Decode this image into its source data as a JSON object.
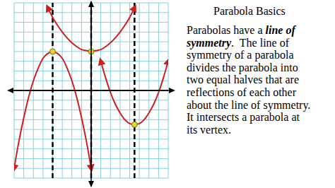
{
  "chart_data": {
    "type": "line",
    "xlim": [
      -8,
      8
    ],
    "ylim": [
      -9,
      9
    ],
    "xticks": [
      -8,
      -7,
      -6,
      -5,
      -4,
      -3,
      -2,
      -1,
      0,
      1,
      2,
      3,
      4,
      5,
      6,
      7,
      8
    ],
    "yticks": [
      -9,
      -8,
      -7,
      -6,
      -5,
      -4,
      -3,
      -2,
      -1,
      0,
      1,
      2,
      3,
      4,
      5,
      6,
      7,
      8,
      9
    ],
    "grid": true,
    "tick_labels": false,
    "series": [
      {
        "color": "#cc1f1f",
        "x": [
          -8,
          -7.5,
          -7,
          -6.5,
          -6,
          -5.5,
          -5,
          -4.5,
          -4,
          -3.5,
          -3,
          -2.5,
          -2,
          -1.5,
          -1,
          -0.5,
          0
        ],
        "values": [
          -8,
          -5.2,
          -2.8,
          -0.7,
          1,
          2.3,
          3.3,
          3.8,
          4,
          3.8,
          3.3,
          2.3,
          1,
          -0.7,
          -2.8,
          -5.2,
          -8
        ]
      },
      {
        "color": "#cc1f1f",
        "x": [
          -4.5,
          -4,
          -3.5,
          -3,
          -2.5,
          -2,
          -1.5,
          -1,
          -0.5,
          0,
          0.5,
          1,
          1.5,
          2,
          2.5,
          3,
          3.5,
          4,
          4.5
        ],
        "values": [
          8.5,
          7.5,
          6.7,
          6,
          5.4,
          4.9,
          4.5,
          4.2,
          4.1,
          4,
          4.1,
          4.2,
          4.5,
          4.9,
          5.4,
          6,
          6.7,
          7.5,
          8.5
        ]
      },
      {
        "color": "#cc1f1f",
        "x": [
          1,
          1.5,
          2,
          2.5,
          3,
          3.5,
          4,
          4.5,
          5,
          5.5,
          6,
          6.5,
          7,
          7.5,
          8
        ],
        "values": [
          3,
          1.3,
          -0.2,
          -1.4,
          -2.3,
          -3,
          -3.4,
          -3.5,
          -3.4,
          -3,
          -2.3,
          -1.4,
          -0.2,
          1.3,
          3
        ]
      }
    ],
    "vertices": {
      "x": [
        -4,
        0,
        4.5
      ],
      "y": [
        4,
        4,
        -3.5
      ],
      "color": "#e3d23a"
    },
    "symmetry_lines": {
      "x": [
        -4,
        0,
        4.5
      ],
      "line_style": "dashed"
    }
  },
  "text": {
    "title": "Parabola Basics",
    "paragraph_lines": [
      [
        {
          "text": "Parabolas have a "
        },
        {
          "text": "line of",
          "emphasis": true
        }
      ],
      [
        {
          "text": "symmetry",
          "emphasis": true
        },
        {
          "text": ".  The line of"
        }
      ],
      [
        {
          "text": "symmetry of a parabola"
        }
      ],
      [
        {
          "text": "divides the parabola into"
        }
      ],
      [
        {
          "text": "two equal halves that are"
        }
      ],
      [
        {
          "text": "reflections of each other"
        }
      ],
      [
        {
          "text": "about the line of symmetry."
        }
      ],
      [
        {
          "text": "It intersects a parabola at"
        }
      ],
      [
        {
          "text": "its vertex."
        }
      ]
    ]
  }
}
